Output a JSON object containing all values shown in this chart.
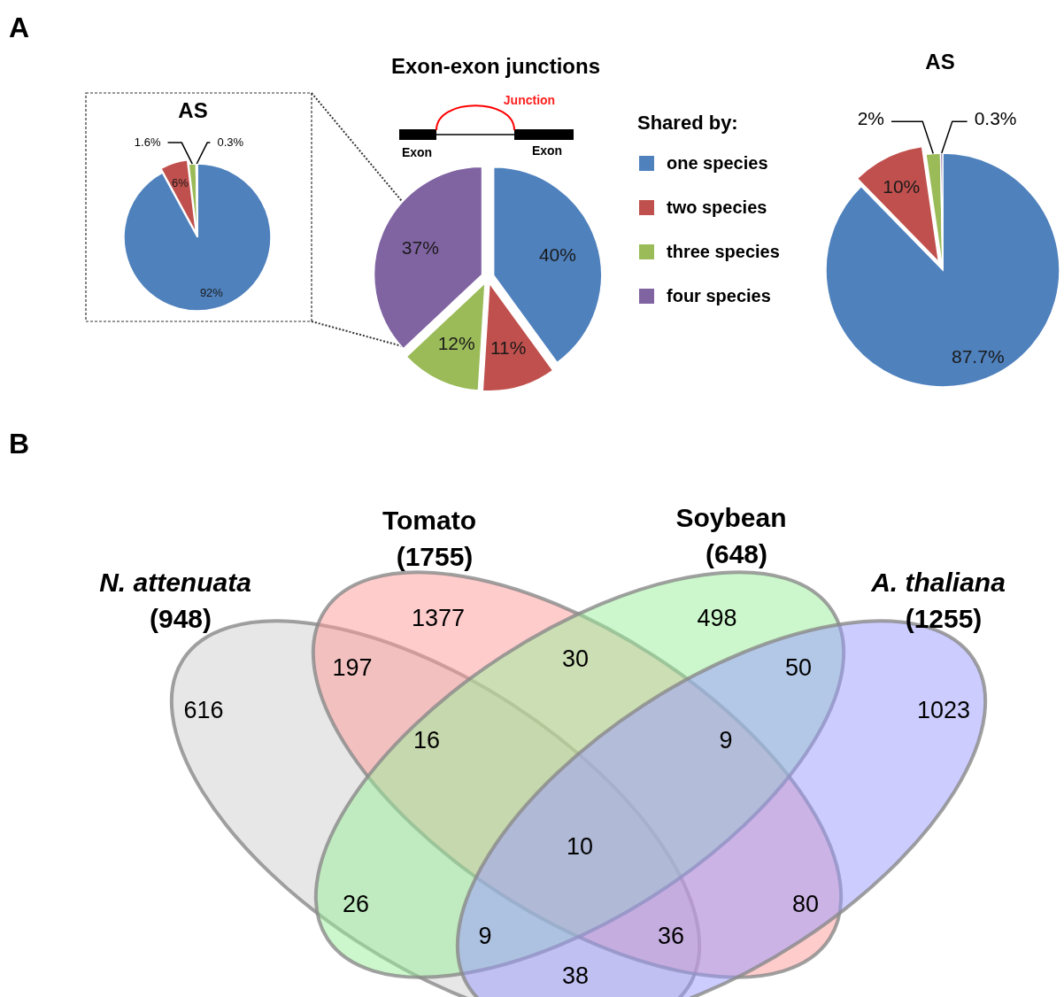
{
  "chart_data": [
    {
      "type": "pie",
      "title": "AS",
      "categories": [
        null,
        null,
        null,
        null
      ],
      "values": [
        92,
        6,
        1.6,
        0.3
      ],
      "colors": [
        "#4f81bd",
        "#c0504d",
        "#9bbb59",
        "#8064a2"
      ],
      "value_labels": [
        "92%",
        "6%",
        "1.6%",
        "0.3%"
      ],
      "annotations": [
        "A"
      ]
    },
    {
      "type": "pie",
      "title": "Exon-exon junctions",
      "categories": [
        "one species",
        "two species",
        "three species",
        "four species"
      ],
      "values": [
        40,
        11,
        12,
        37
      ],
      "colors": [
        "#4f81bd",
        "#c0504d",
        "#9bbb59",
        "#8064a2"
      ],
      "value_labels": [
        "40%",
        "11%",
        "12%",
        "37%"
      ],
      "legend": "right",
      "legend_title": "Shared by:",
      "annotations": [
        "Junction",
        "Exon",
        "Exon"
      ]
    },
    {
      "type": "pie",
      "title": "AS",
      "categories": [
        null,
        null,
        null,
        null
      ],
      "values": [
        87.7,
        10,
        2,
        0.3
      ],
      "colors": [
        "#4f81bd",
        "#c0504d",
        "#9bbb59",
        "#8064a2"
      ],
      "value_labels": [
        "87.7%",
        "10%",
        "2%",
        "0.3%"
      ]
    },
    {
      "type": "other",
      "categories": [
        "N. attenuata",
        "Tomato",
        "Soybean",
        "A. thaliana"
      ],
      "colors": [
        "#d0d0d0",
        "#ff9a9a",
        "#9af09a",
        "#9a9aff"
      ],
      "annotations": [
        "B",
        "616",
        "1377",
        "498",
        "1023",
        "197",
        "30",
        "50",
        "16",
        "9",
        "10",
        "26",
        "80",
        "9",
        "36",
        "38",
        "(948)",
        "(1755)",
        "(648)",
        "(1255)"
      ]
    }
  ]
}
